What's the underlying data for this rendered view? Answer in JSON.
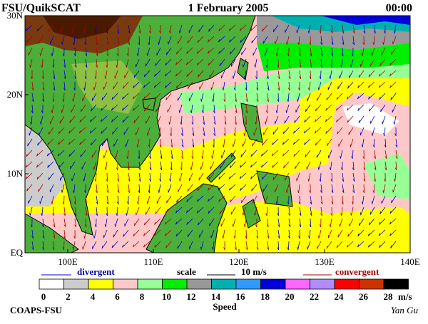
{
  "header": {
    "left": "FSU/QuikSCAT",
    "date": "1 February 2005",
    "time": "00:00"
  },
  "axes": {
    "lat": [
      "30N",
      "20N",
      "10N",
      "EQ"
    ],
    "lon": [
      "100E",
      "110E",
      "120E",
      "130E",
      "140E"
    ]
  },
  "legend": {
    "divergent": "divergent",
    "scale": "scale",
    "scale_value": "10 m/s",
    "convergent": "convergent"
  },
  "colorbar": {
    "labels": [
      "0",
      "2",
      "4",
      "6",
      "8",
      "10",
      "12",
      "14",
      "16",
      "18",
      "20",
      "22",
      "24",
      "26",
      "28"
    ],
    "colors": [
      "#ffffff",
      "#cccccc",
      "#ffff00",
      "#ffc8c8",
      "#96ff96",
      "#00ee00",
      "#999999",
      "#00b0b0",
      "#3399ff",
      "#0000dd",
      "#ff66ff",
      "#b08cff",
      "#ff0000",
      "#cc3300",
      "#000000"
    ],
    "unit": "m/s",
    "title": "Speed"
  },
  "footer": {
    "left": "COAPS-FSU",
    "right": "Yan Gu"
  }
}
